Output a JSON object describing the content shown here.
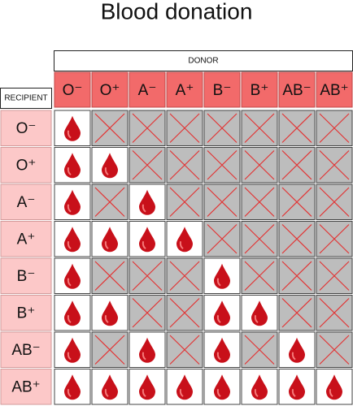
{
  "title": "Blood donation",
  "donor_label": "DONOR",
  "recipient_label": "RECIPIENT",
  "donors": [
    "O⁻",
    "O⁺",
    "A⁻",
    "A⁺",
    "B⁻",
    "B⁺",
    "AB⁻",
    "AB⁺"
  ],
  "recipients": [
    "O⁻",
    "O⁺",
    "A⁻",
    "A⁺",
    "B⁻",
    "B⁺",
    "AB⁻",
    "AB⁺"
  ],
  "compatible": [
    [
      true,
      false,
      false,
      false,
      false,
      false,
      false,
      false
    ],
    [
      true,
      true,
      false,
      false,
      false,
      false,
      false,
      false
    ],
    [
      true,
      false,
      true,
      false,
      false,
      false,
      false,
      false
    ],
    [
      true,
      true,
      true,
      true,
      false,
      false,
      false,
      false
    ],
    [
      true,
      false,
      false,
      false,
      true,
      false,
      false,
      false
    ],
    [
      true,
      true,
      false,
      false,
      true,
      true,
      false,
      false
    ],
    [
      true,
      false,
      true,
      false,
      true,
      false,
      true,
      false
    ],
    [
      true,
      true,
      true,
      true,
      true,
      true,
      true,
      true
    ]
  ]
}
